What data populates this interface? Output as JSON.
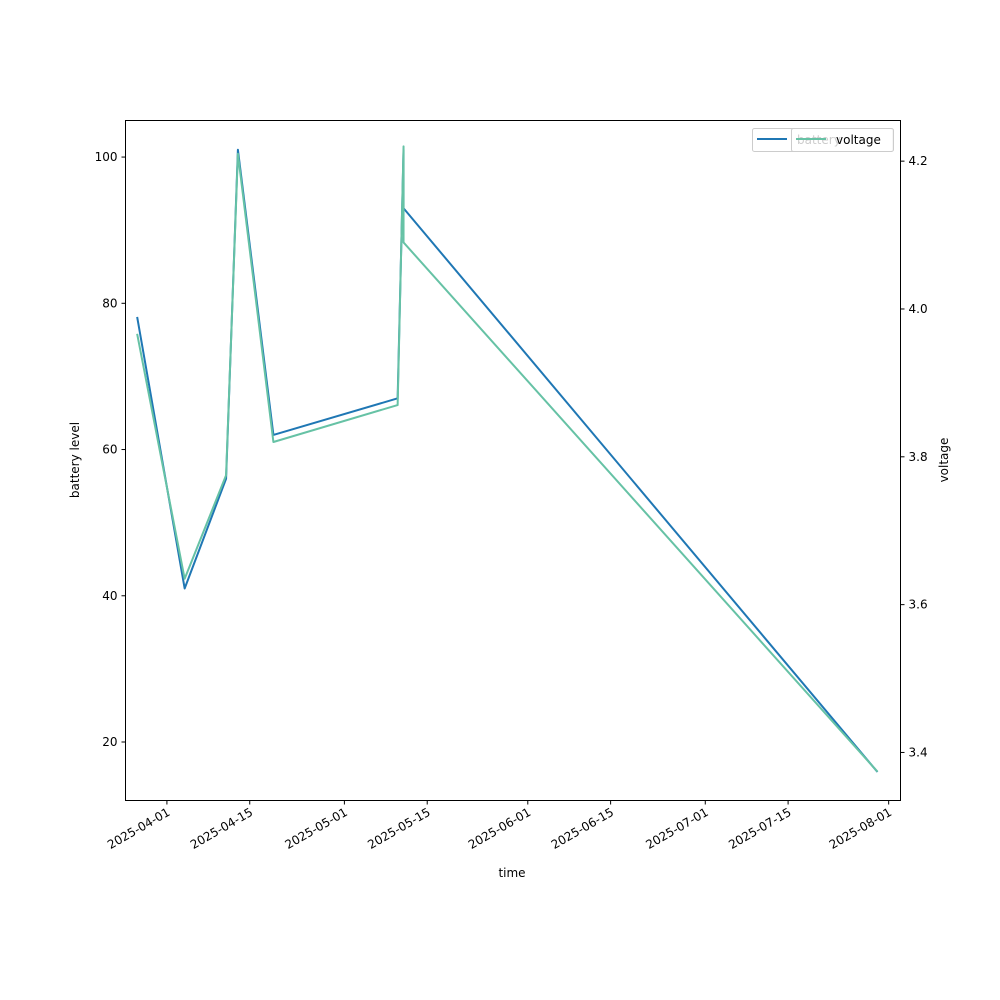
{
  "chart_data": {
    "type": "line",
    "xlabel": "time",
    "ylabel_left": "battery level",
    "ylabel_right": "voltage",
    "x_ticks": [
      "2025-04-01",
      "2025-04-15",
      "2025-05-01",
      "2025-05-15",
      "2025-06-01",
      "2025-06-15",
      "2025-07-01",
      "2025-07-15",
      "2025-08-01"
    ],
    "xlim": [
      "2025-03-25",
      "2025-08-03"
    ],
    "ylim_left": [
      12,
      105
    ],
    "yticks_left": [
      20,
      40,
      60,
      80,
      100
    ],
    "ylim_right": [
      3.335,
      4.255
    ],
    "yticks_right": [
      "3.4",
      "3.6",
      "3.8",
      "4.0",
      "4.2"
    ],
    "legend_position": "top-right",
    "series": [
      {
        "name": "battery",
        "axis": "left",
        "color": "#1f77b4",
        "x": [
          "2025-03-27",
          "2025-04-04",
          "2025-04-11",
          "2025-04-13",
          "2025-04-13",
          "2025-04-19",
          "2025-05-10",
          "2025-05-11",
          "2025-05-11",
          "2025-07-30"
        ],
        "y": [
          78,
          41,
          56,
          101,
          101,
          62,
          67,
          101,
          93,
          16
        ]
      },
      {
        "name": "voltage",
        "axis": "right",
        "color": "#66c2a5",
        "x": [
          "2025-03-27",
          "2025-04-04",
          "2025-04-11",
          "2025-04-13",
          "2025-04-19",
          "2025-05-10",
          "2025-05-11",
          "2025-05-11",
          "2025-07-30"
        ],
        "y": [
          3.965,
          3.635,
          3.775,
          4.21,
          3.82,
          3.87,
          4.22,
          4.09,
          3.375
        ]
      }
    ]
  }
}
